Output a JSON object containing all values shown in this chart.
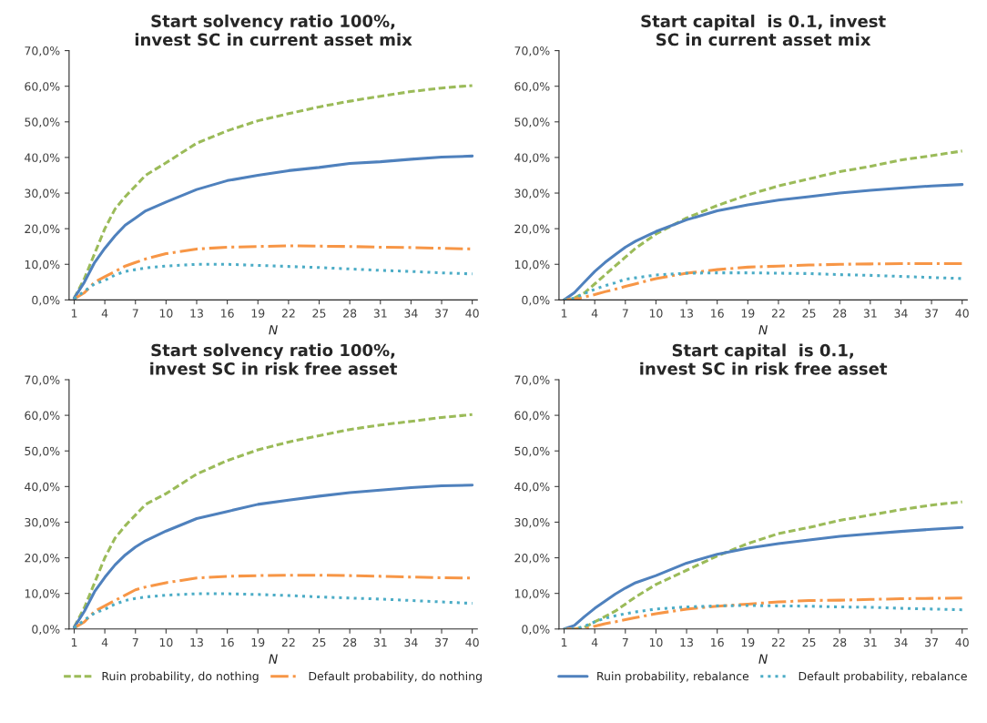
{
  "chart_data": [
    {
      "type": "line",
      "title": "Start solvency ratio 100%, invest SC in current asset mix",
      "xlabel": "N",
      "x": [
        1,
        2,
        3,
        4,
        5,
        6,
        7,
        8,
        10,
        13,
        16,
        19,
        22,
        25,
        28,
        31,
        34,
        37,
        40
      ],
      "xlim": [
        0.5,
        40.5
      ],
      "xticks": [
        1,
        4,
        7,
        10,
        13,
        16,
        19,
        22,
        25,
        28,
        31,
        34,
        37,
        40
      ],
      "ylim": [
        0,
        70
      ],
      "yticks": [
        {
          "value": 0,
          "label": "0,0%"
        },
        {
          "value": 10,
          "label": "10,0%"
        },
        {
          "value": 20,
          "label": "20,0%"
        },
        {
          "value": 30,
          "label": "30,0%"
        },
        {
          "value": 40,
          "label": "40,0%"
        },
        {
          "value": 50,
          "label": "50,0%"
        },
        {
          "value": 60,
          "label": "60,0%"
        },
        {
          "value": 70,
          "label": "70,0%"
        }
      ],
      "marker": "none",
      "series": [
        {
          "color": "#9bbb59",
          "line_style": "dashed",
          "values": [
            0.5,
            6,
            13,
            20,
            25.5,
            29,
            32,
            35,
            38.5,
            44,
            47.5,
            50.3,
            52.3,
            54.2,
            55.8,
            57.2,
            58.5,
            59.5,
            60.2
          ]
        },
        {
          "color": "#4f81bd",
          "line_style": "solid",
          "values": [
            0.5,
            5,
            10.5,
            14.5,
            18,
            21,
            23,
            25,
            27.5,
            31,
            33.5,
            35,
            36.3,
            37.2,
            38.3,
            38.8,
            39.5,
            40.1,
            40.4
          ]
        },
        {
          "color": "#f79646",
          "line_style": "dashdot",
          "values": [
            0.3,
            2,
            5,
            6.5,
            8,
            9.5,
            10.5,
            11.5,
            13,
            14.3,
            14.8,
            15,
            15.2,
            15.1,
            15,
            14.8,
            14.7,
            14.5,
            14.3
          ]
        },
        {
          "color": "#4bacc6",
          "line_style": "dotted",
          "values": [
            0.3,
            2.5,
            4.5,
            5.5,
            7,
            8,
            8.5,
            9,
            9.5,
            10,
            10,
            9.7,
            9.4,
            9.1,
            8.7,
            8.3,
            8,
            7.6,
            7.3
          ]
        }
      ]
    },
    {
      "type": "line",
      "title": "Start capital  is 0.1, invest SC in current asset mix",
      "xlabel": "N",
      "x": [
        1,
        2,
        3,
        4,
        5,
        6,
        7,
        8,
        10,
        13,
        16,
        19,
        22,
        25,
        28,
        31,
        34,
        37,
        40
      ],
      "xlim": [
        0.5,
        40.5
      ],
      "xticks": [
        1,
        4,
        7,
        10,
        13,
        16,
        19,
        22,
        25,
        28,
        31,
        34,
        37,
        40
      ],
      "ylim": [
        0,
        70
      ],
      "yticks": [
        {
          "value": 0,
          "label": "0,0%"
        },
        {
          "value": 10,
          "label": "10,0%"
        },
        {
          "value": 20,
          "label": "20,0%"
        },
        {
          "value": 30,
          "label": "30,0%"
        },
        {
          "value": 40,
          "label": "40,0%"
        },
        {
          "value": 50,
          "label": "50,0%"
        },
        {
          "value": 60,
          "label": "60,0%"
        },
        {
          "value": 70,
          "label": "70,0%"
        }
      ],
      "marker": "none",
      "series": [
        {
          "color": "#9bbb59",
          "line_style": "dashed",
          "values": [
            0,
            0.5,
            2,
            4.5,
            7,
            9.5,
            12,
            14.5,
            18.5,
            23,
            26.5,
            29.5,
            32,
            34,
            36,
            37.5,
            39.3,
            40.5,
            41.8
          ]
        },
        {
          "color": "#4f81bd",
          "line_style": "solid",
          "values": [
            0,
            2,
            5,
            8,
            10.5,
            12.7,
            14.8,
            16.5,
            19.2,
            22.5,
            25,
            26.7,
            28,
            29,
            30,
            30.8,
            31.4,
            32,
            32.4
          ]
        },
        {
          "color": "#f79646",
          "line_style": "dashdot",
          "values": [
            0,
            0.2,
            0.8,
            1.5,
            2.3,
            3,
            3.8,
            4.5,
            6,
            7.5,
            8.5,
            9.2,
            9.5,
            9.8,
            10,
            10.1,
            10.2,
            10.2,
            10.2
          ]
        },
        {
          "color": "#4bacc6",
          "line_style": "dotted",
          "values": [
            0,
            0.5,
            1.8,
            3,
            4,
            4.8,
            5.8,
            6.2,
            7,
            7.5,
            7.6,
            7.6,
            7.5,
            7.4,
            7.1,
            6.9,
            6.6,
            6.3,
            6
          ]
        }
      ]
    },
    {
      "type": "line",
      "title": "Start solvency ratio 100%, invest SC in risk free asset",
      "xlabel": "N",
      "x": [
        1,
        2,
        3,
        4,
        5,
        6,
        7,
        8,
        10,
        13,
        16,
        19,
        22,
        25,
        28,
        31,
        34,
        37,
        40
      ],
      "xlim": [
        0.5,
        40.5
      ],
      "xticks": [
        1,
        4,
        7,
        10,
        13,
        16,
        19,
        22,
        25,
        28,
        31,
        34,
        37,
        40
      ],
      "ylim": [
        0,
        70
      ],
      "yticks": [
        {
          "value": 0,
          "label": "0,0%"
        },
        {
          "value": 10,
          "label": "10,0%"
        },
        {
          "value": 20,
          "label": "20,0%"
        },
        {
          "value": 30,
          "label": "30,0%"
        },
        {
          "value": 40,
          "label": "40,0%"
        },
        {
          "value": 50,
          "label": "50,0%"
        },
        {
          "value": 60,
          "label": "60,0%"
        },
        {
          "value": 70,
          "label": "70,0%"
        }
      ],
      "marker": "none",
      "legend": "bottom",
      "series": [
        {
          "name": "Ruin probability, do nothing",
          "color": "#9bbb59",
          "line_style": "dashed",
          "values": [
            0.5,
            6,
            13,
            20,
            25.5,
            29,
            32,
            35,
            38,
            43.5,
            47.3,
            50.3,
            52.5,
            54.3,
            56,
            57.3,
            58.3,
            59.4,
            60.2
          ]
        },
        {
          "color": "#4f81bd",
          "line_style": "solid",
          "values": [
            0.5,
            5,
            10.5,
            14.5,
            18,
            20.8,
            23,
            24.8,
            27.5,
            31,
            33,
            35,
            36.2,
            37.3,
            38.3,
            39,
            39.7,
            40.2,
            40.4
          ]
        },
        {
          "name": "Default probability, do nothing",
          "color": "#f79646",
          "line_style": "dashdot",
          "values": [
            0.3,
            2,
            5,
            6.5,
            8,
            9.5,
            11,
            11.8,
            13,
            14.3,
            14.8,
            15,
            15.1,
            15.1,
            15,
            14.8,
            14.6,
            14.4,
            14.3
          ]
        },
        {
          "color": "#4bacc6",
          "line_style": "dotted",
          "values": [
            0.3,
            2.5,
            4.5,
            5.5,
            7,
            8,
            8.6,
            9,
            9.5,
            9.9,
            9.9,
            9.7,
            9.4,
            9,
            8.7,
            8.4,
            8,
            7.6,
            7.2
          ]
        }
      ]
    },
    {
      "type": "line",
      "title": "Start capital  is 0.1, invest SC in risk free asset",
      "xlabel": "N",
      "x": [
        1,
        2,
        3,
        4,
        5,
        6,
        7,
        8,
        10,
        13,
        16,
        19,
        22,
        25,
        28,
        31,
        34,
        37,
        40
      ],
      "xlim": [
        0.5,
        40.5
      ],
      "xticks": [
        1,
        4,
        7,
        10,
        13,
        16,
        19,
        22,
        25,
        28,
        31,
        34,
        37,
        40
      ],
      "ylim": [
        0,
        70
      ],
      "yticks": [
        {
          "value": 0,
          "label": "0,0%"
        },
        {
          "value": 10,
          "label": "10,0%"
        },
        {
          "value": 20,
          "label": "20,0%"
        },
        {
          "value": 30,
          "label": "30,0%"
        },
        {
          "value": 40,
          "label": "40,0%"
        },
        {
          "value": 50,
          "label": "50,0%"
        },
        {
          "value": 60,
          "label": "60,0%"
        },
        {
          "value": 70,
          "label": "70,0%"
        }
      ],
      "marker": "none",
      "legend": "bottom",
      "series": [
        {
          "color": "#9bbb59",
          "line_style": "dashed",
          "values": [
            0,
            0,
            0.5,
            2,
            3.5,
            5,
            7,
            9,
            12.5,
            16.5,
            20.5,
            24,
            26.8,
            28.5,
            30.5,
            32,
            33.5,
            34.8,
            35.7
          ]
        },
        {
          "name": "Ruin probability, rebalance",
          "color": "#4f81bd",
          "line_style": "solid",
          "values": [
            0,
            1,
            3.5,
            5.8,
            7.8,
            9.8,
            11.5,
            13,
            15,
            18.5,
            21,
            22.7,
            24,
            25,
            26,
            26.7,
            27.4,
            28,
            28.5
          ]
        },
        {
          "color": "#f79646",
          "line_style": "dashdot",
          "values": [
            0,
            0,
            0,
            0.8,
            1.5,
            2,
            2.6,
            3.2,
            4.3,
            5.6,
            6.4,
            7,
            7.6,
            8,
            8.1,
            8.3,
            8.5,
            8.6,
            8.7
          ]
        },
        {
          "name": "Default probability, rebalance",
          "color": "#4bacc6",
          "line_style": "dotted",
          "values": [
            0,
            0,
            0.8,
            2,
            3,
            3.7,
            4.3,
            4.8,
            5.6,
            6.2,
            6.5,
            6.6,
            6.5,
            6.4,
            6.2,
            6.1,
            5.8,
            5.6,
            5.4
          ]
        }
      ]
    }
  ]
}
